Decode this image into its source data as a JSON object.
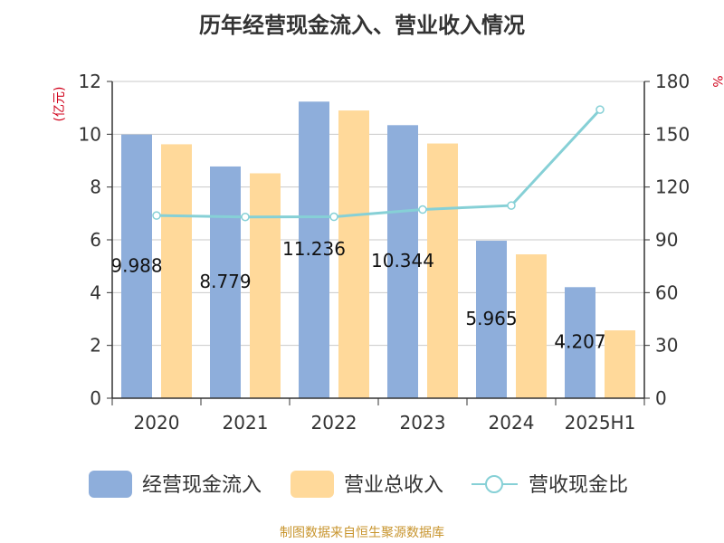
{
  "chart_data": {
    "type": "bar",
    "title": "历年经营现金流入、营业收入情况",
    "categories": [
      "2020",
      "2021",
      "2022",
      "2023",
      "2024",
      "2025H1"
    ],
    "series": [
      {
        "name": "经营现金流入",
        "type": "bar",
        "axis": "left",
        "color": "#8eaedb",
        "values": [
          9.988,
          8.779,
          11.236,
          10.344,
          5.965,
          4.207
        ]
      },
      {
        "name": "营业总收入",
        "type": "bar",
        "axis": "left",
        "color": "#ffd99a",
        "values": [
          9.62,
          8.52,
          10.9,
          9.65,
          5.45,
          2.57
        ]
      },
      {
        "name": "营收现金比",
        "type": "line",
        "axis": "right",
        "color": "#86d0d6",
        "values": [
          103.8,
          103.0,
          103.1,
          107.2,
          109.5,
          164.0
        ]
      }
    ],
    "data_labels": [
      "9.988",
      "8.779",
      "11.236",
      "10.344",
      "5.965",
      "4.207"
    ],
    "y_left": {
      "label": "(亿元)",
      "ylim": [
        0,
        12
      ],
      "ticks": [
        "0",
        "2",
        "4",
        "6",
        "8",
        "10",
        "12"
      ]
    },
    "y_right": {
      "label": "%",
      "ylim": [
        0,
        180
      ],
      "ticks": [
        "0",
        "30",
        "60",
        "90",
        "120",
        "150",
        "180"
      ]
    },
    "grid": true,
    "legend_position": "bottom"
  },
  "source": "制图数据来自恒生聚源数据库"
}
